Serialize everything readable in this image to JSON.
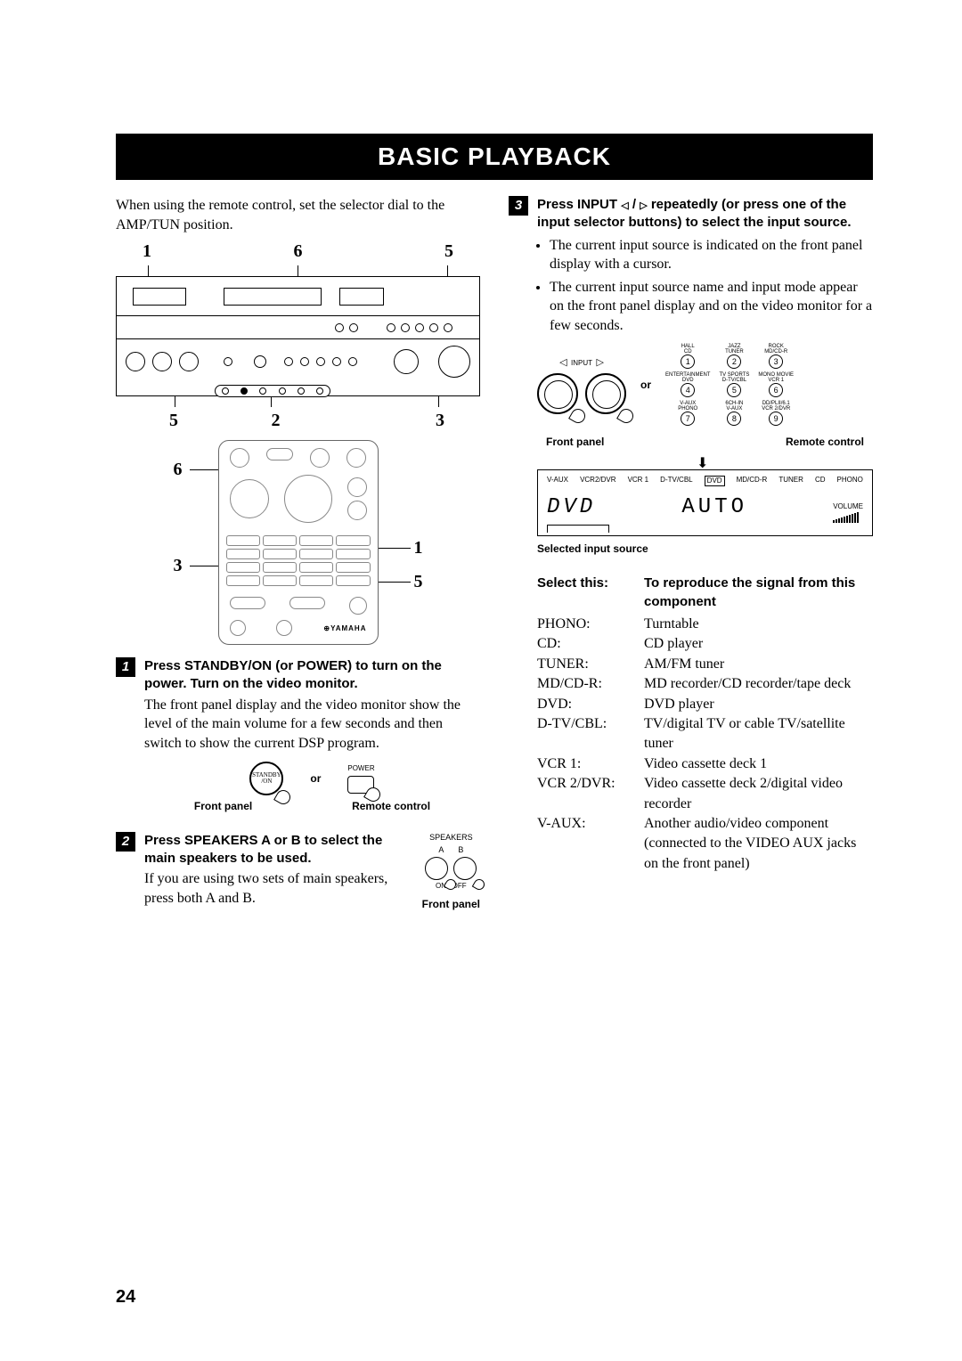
{
  "title": "BASIC PLAYBACK",
  "intro": "When using the remote control, set the selector dial to the AMP/TUN position.",
  "diagram": {
    "top_labels": [
      "1",
      "6",
      "5"
    ],
    "bottom_labels": [
      "5",
      "2",
      "3"
    ],
    "remote_left": [
      "6",
      "3"
    ],
    "remote_right": [
      "1",
      "5"
    ]
  },
  "steps": [
    {
      "num": "1",
      "title": "Press STANDBY/ON (or POWER) to turn on the power. Turn on the video monitor.",
      "desc": "The front panel display and the video monitor show the level of the main volume for a few seconds and then switch to show the current DSP program.",
      "mini": {
        "left_label": "STANDBY\n/ON",
        "right_label": "POWER",
        "or": "or",
        "caption_left": "Front panel",
        "caption_right": "Remote control"
      }
    },
    {
      "num": "2",
      "title": "Press SPEAKERS A or B to select the main speakers to be used.",
      "desc": "If you are using two sets of main speakers, press both A and B.",
      "speakers": {
        "heading": "SPEAKERS",
        "a": "A",
        "b": "B",
        "onoff": "ON    OFF",
        "caption": "Front panel"
      }
    },
    {
      "num": "3",
      "title_prefix": "Press INPUT ",
      "title_suffix": " repeatedly (or press one of the input selector buttons) to select the input source.",
      "bullets": [
        "The current input source is indicated on the front panel display with a cursor.",
        "The current input source name and input mode appear on the front panel display and on the video monitor for a few seconds."
      ],
      "dial": {
        "input_label": "INPUT",
        "or": "or",
        "caption_left": "Front panel",
        "caption_right": "Remote control",
        "remote_buttons": [
          {
            "top": "HALL\nCD",
            "n": "1"
          },
          {
            "top": "JAZZ\nTUNER",
            "n": "2"
          },
          {
            "top": "ROCK\nMD/CD-R",
            "n": "3"
          },
          {
            "top": "ENTERTAINMENT\nDVD",
            "n": "4"
          },
          {
            "top": "TV SPORTS\nD-TV/CBL",
            "n": "5"
          },
          {
            "top": "MONO MOVIE\nVCR 1",
            "n": "6"
          },
          {
            "top": "V-AUX\nPHONO",
            "n": "7"
          },
          {
            "top": "6CH-IN\nV-AUX",
            "n": "8"
          },
          {
            "top": "DD/PLII/6.1\nVCR 2/DVR",
            "n": "9"
          }
        ]
      },
      "display": {
        "labels": [
          "V-AUX",
          "VCR2/DVR",
          "VCR 1",
          "D-TV/CBL",
          "DVD",
          "MD/CD-R",
          "TUNER",
          "CD",
          "PHONO"
        ],
        "dvd_boxed": "DVD",
        "seg_left": "DVD",
        "seg_right": "AUTO",
        "volume_label": "VOLUME",
        "caption": "Selected input source"
      }
    }
  ],
  "source_table": {
    "header_left": "Select this:",
    "header_right": "To reproduce the signal from this component",
    "rows": [
      {
        "s": "PHONO:",
        "d": "Turntable"
      },
      {
        "s": "CD:",
        "d": "CD player"
      },
      {
        "s": "TUNER:",
        "d": "AM/FM tuner"
      },
      {
        "s": "MD/CD-R:",
        "d": "MD recorder/CD recorder/tape deck"
      },
      {
        "s": "DVD:",
        "d": "DVD player"
      },
      {
        "s": "D-TV/CBL:",
        "d": "TV/digital TV or cable TV/satellite tuner"
      },
      {
        "s": "VCR 1:",
        "d": "Video cassette deck 1"
      },
      {
        "s": "VCR 2/DVR:",
        "d": "Video cassette deck 2/digital video recorder"
      },
      {
        "s": "V-AUX:",
        "d": "Another audio/video component (connected to the VIDEO AUX jacks on the front panel)"
      }
    ]
  },
  "page_number": "24",
  "colors": {
    "bg": "#ffffff",
    "fg": "#000000"
  }
}
